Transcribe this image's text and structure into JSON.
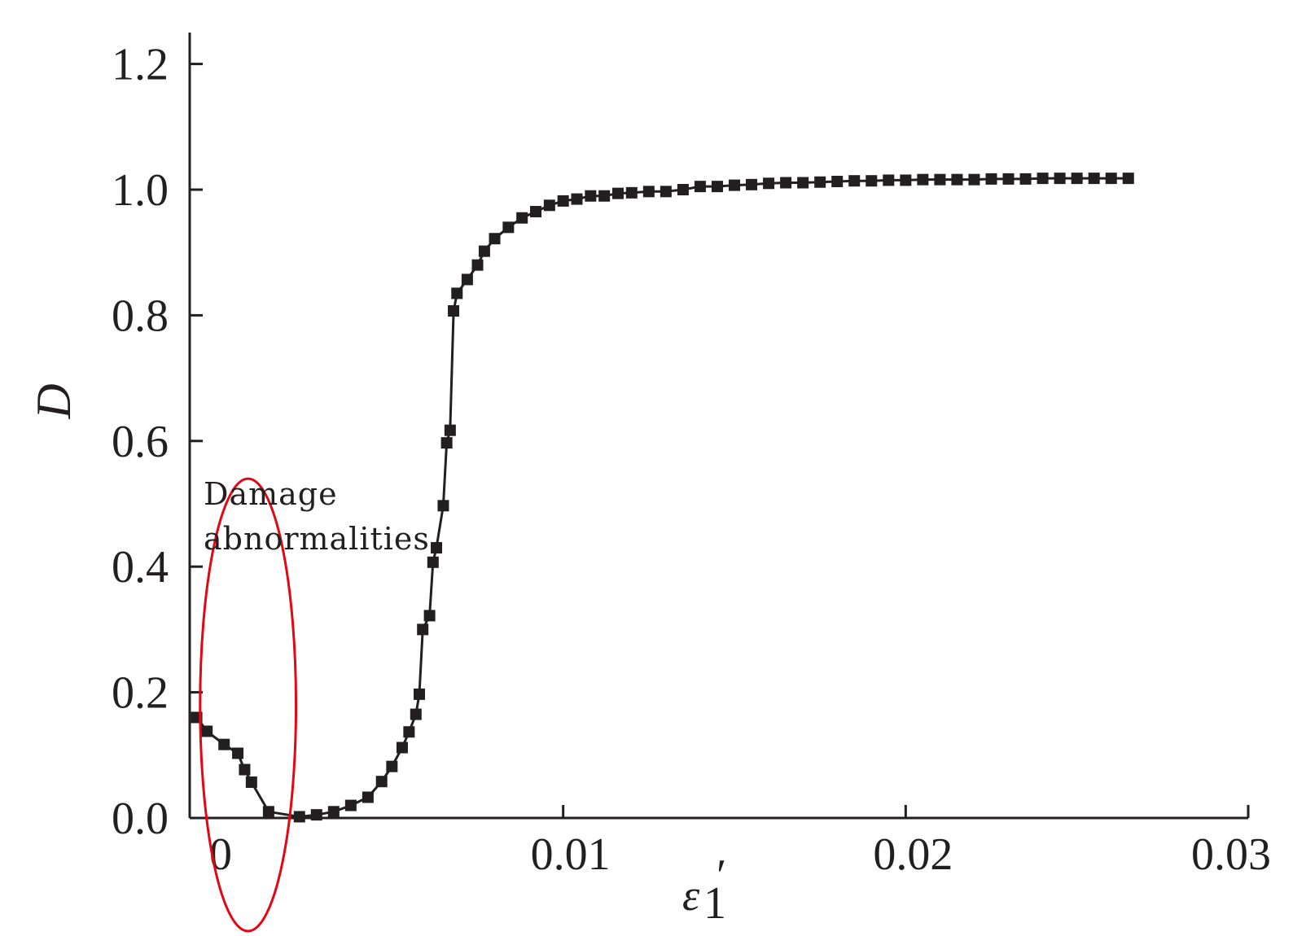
{
  "chart_data": {
    "type": "line",
    "title": "",
    "xlabel": "ε",
    "xlabel_subscript": "1",
    "xlabel_prime": "′",
    "ylabel": "D",
    "xlim": [
      -0.0008,
      0.03
    ],
    "ylim": [
      0,
      1.25
    ],
    "x_ticks": [
      0,
      0.01,
      0.02,
      0.03
    ],
    "x_tick_labels": [
      "0",
      "0.01",
      "0.02",
      "0.03"
    ],
    "y_ticks": [
      0,
      0.2,
      0.4,
      0.6,
      0.8,
      1.0,
      1.2
    ],
    "y_tick_labels": [
      "0.0",
      "0.2",
      "0.4",
      "0.6",
      "0.8",
      "1.0",
      "1.2"
    ],
    "grid": false,
    "legend": "none",
    "line_color": "#231f20",
    "series": [
      {
        "marker": "square",
        "x": [
          -0.0007,
          -0.0004,
          0.0001,
          0.0005,
          0.0007,
          0.0009,
          0.0014,
          0.0023,
          0.0028,
          0.0033,
          0.0038,
          0.0043,
          0.0047,
          0.005,
          0.0053,
          0.0055,
          0.0057,
          0.0058,
          0.0059,
          0.0061,
          0.0062,
          0.0063,
          0.0065,
          0.0066,
          0.0067,
          0.0068,
          0.0069,
          0.0072,
          0.0075,
          0.0077,
          0.008,
          0.0084,
          0.0088,
          0.0092,
          0.0096,
          0.01,
          0.0104,
          0.0108,
          0.0112,
          0.0116,
          0.012,
          0.0125,
          0.013,
          0.0135,
          0.014,
          0.0145,
          0.015,
          0.0155,
          0.016,
          0.0165,
          0.017,
          0.0175,
          0.018,
          0.0185,
          0.019,
          0.0195,
          0.02,
          0.0205,
          0.021,
          0.0215,
          0.022,
          0.0225,
          0.023,
          0.0235,
          0.024,
          0.0245,
          0.025,
          0.0255,
          0.026,
          0.0265
        ],
        "y": [
          0.16,
          0.138,
          0.117,
          0.103,
          0.077,
          0.057,
          0.01,
          0.002,
          0.005,
          0.01,
          0.02,
          0.033,
          0.058,
          0.082,
          0.112,
          0.137,
          0.165,
          0.197,
          0.3,
          0.322,
          0.407,
          0.43,
          0.497,
          0.597,
          0.617,
          0.807,
          0.835,
          0.857,
          0.88,
          0.902,
          0.922,
          0.94,
          0.955,
          0.965,
          0.975,
          0.982,
          0.985,
          0.99,
          0.99,
          0.994,
          0.995,
          0.997,
          0.997,
          1.0,
          1.005,
          1.005,
          1.007,
          1.008,
          1.01,
          1.011,
          1.011,
          1.012,
          1.013,
          1.014,
          1.014,
          1.015,
          1.015,
          1.016,
          1.016,
          1.016,
          1.016,
          1.017,
          1.017,
          1.017,
          1.018,
          1.018,
          1.018,
          1.018,
          1.018,
          1.018
        ]
      }
    ],
    "annotation": {
      "lines": [
        "Damage",
        "abnormalities"
      ],
      "highlight": "ellipse",
      "highlight_color": "#e30613",
      "center": [
        0.0008,
        0.18
      ],
      "radius": [
        0.0014,
        0.36
      ]
    }
  }
}
